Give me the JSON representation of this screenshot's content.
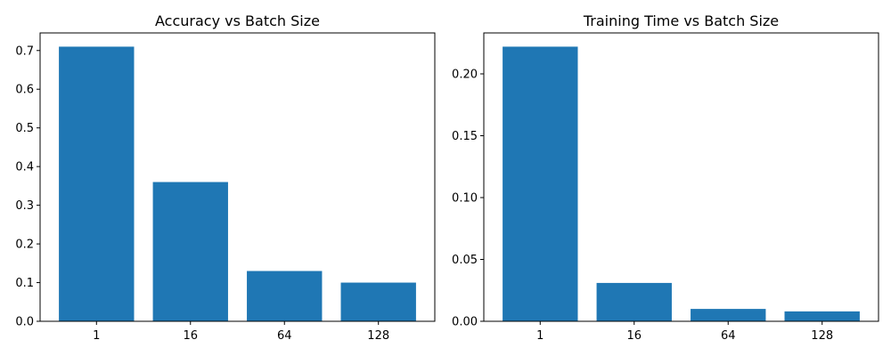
{
  "chart_data": [
    {
      "type": "bar",
      "title": "Accuracy vs Batch Size",
      "xlabel": "",
      "ylabel": "",
      "categories": [
        "1",
        "16",
        "64",
        "128"
      ],
      "values": [
        0.71,
        0.36,
        0.13,
        0.1
      ],
      "ylim": [
        0,
        0.7455
      ],
      "yticks": [
        0.0,
        0.1,
        0.2,
        0.3,
        0.4,
        0.5,
        0.6,
        0.7
      ],
      "ytick_labels": [
        "0.0",
        "0.1",
        "0.2",
        "0.3",
        "0.4",
        "0.5",
        "0.6",
        "0.7"
      ],
      "bar_color": "#1f77b4",
      "grid": false,
      "legend": "none"
    },
    {
      "type": "bar",
      "title": "Training Time vs Batch Size",
      "xlabel": "",
      "ylabel": "",
      "categories": [
        "1",
        "16",
        "64",
        "128"
      ],
      "values": [
        0.222,
        0.031,
        0.01,
        0.008
      ],
      "ylim": [
        0,
        0.2331
      ],
      "yticks": [
        0.0,
        0.05,
        0.1,
        0.15,
        0.2
      ],
      "ytick_labels": [
        "0.00",
        "0.05",
        "0.10",
        "0.15",
        "0.20"
      ],
      "bar_color": "#1f77b4",
      "grid": false,
      "legend": "none"
    }
  ]
}
